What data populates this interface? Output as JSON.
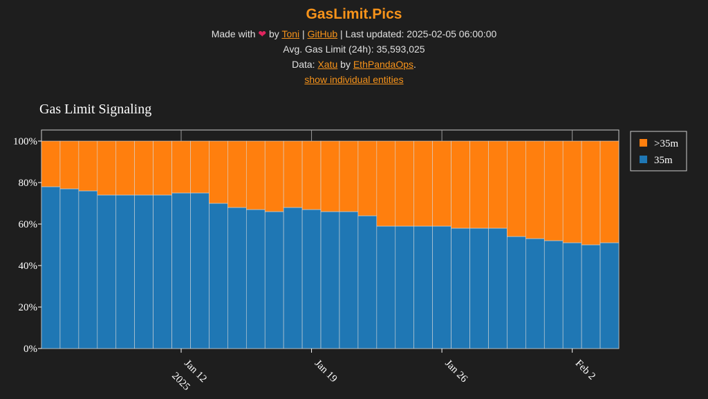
{
  "site": {
    "title": "GasLimit.Pics",
    "made_with": "Made with",
    "heart_icon": "heart-icon",
    "by": "by",
    "author_link": "Toni",
    "sep1": "|",
    "github_link": "GitHub",
    "last_updated": "| Last updated: 2025-02-05 06:00:00",
    "avg_gas": "Avg. Gas Limit (24h): 35,593,025",
    "data_prefix": "Data:",
    "xatu_link": "Xatu",
    "data_by": "by",
    "ethpandaops_link": "EthPandaOps",
    "data_suffix": ".",
    "toggle_link": "show individual entities"
  },
  "colors": {
    "accent": "#f7931a",
    "series_35m": "#1f77b4",
    "series_gt35m": "#ff7f0e",
    "background": "#1e1e1e"
  },
  "chart_data": {
    "type": "bar",
    "stacked": true,
    "title": "Gas Limit Signaling",
    "xlabel": "",
    "ylabel": "",
    "ylim": [
      0,
      100
    ],
    "y_tick_labels": [
      "0%",
      "20%",
      "40%",
      "60%",
      "80%",
      "100%"
    ],
    "x_tick_labels": [
      {
        "label": "Jan 12",
        "sub": "2025",
        "date": "2025-01-12"
      },
      {
        "label": "Jan 19",
        "sub": "",
        "date": "2025-01-19"
      },
      {
        "label": "Jan 26",
        "sub": "",
        "date": "2025-01-26"
      },
      {
        "label": "Feb 2",
        "sub": "",
        "date": "2025-02-02"
      }
    ],
    "categories": [
      "2025-01-05",
      "2025-01-06",
      "2025-01-07",
      "2025-01-08",
      "2025-01-09",
      "2025-01-10",
      "2025-01-11",
      "2025-01-12",
      "2025-01-13",
      "2025-01-14",
      "2025-01-15",
      "2025-01-16",
      "2025-01-17",
      "2025-01-18",
      "2025-01-19",
      "2025-01-20",
      "2025-01-21",
      "2025-01-22",
      "2025-01-23",
      "2025-01-24",
      "2025-01-25",
      "2025-01-26",
      "2025-01-27",
      "2025-01-28",
      "2025-01-29",
      "2025-01-30",
      "2025-01-31",
      "2025-02-01",
      "2025-02-02",
      "2025-02-03",
      "2025-02-04"
    ],
    "series": [
      {
        "name": "35m",
        "values": [
          78,
          77,
          76,
          74,
          74,
          74,
          74,
          75,
          75,
          70,
          68,
          67,
          66,
          68,
          67,
          66,
          66,
          64,
          59,
          59,
          59,
          59,
          58,
          58,
          58,
          54,
          53,
          52,
          51,
          50,
          51
        ]
      },
      {
        "name": ">35m",
        "values": [
          22,
          23,
          24,
          26,
          26,
          26,
          26,
          25,
          25,
          30,
          32,
          33,
          34,
          32,
          33,
          34,
          34,
          36,
          41,
          41,
          41,
          41,
          42,
          42,
          42,
          46,
          47,
          48,
          49,
          50,
          49
        ]
      }
    ],
    "legend": {
      "placement": "top-right",
      "entries": [
        ">35m",
        "35m"
      ]
    }
  }
}
